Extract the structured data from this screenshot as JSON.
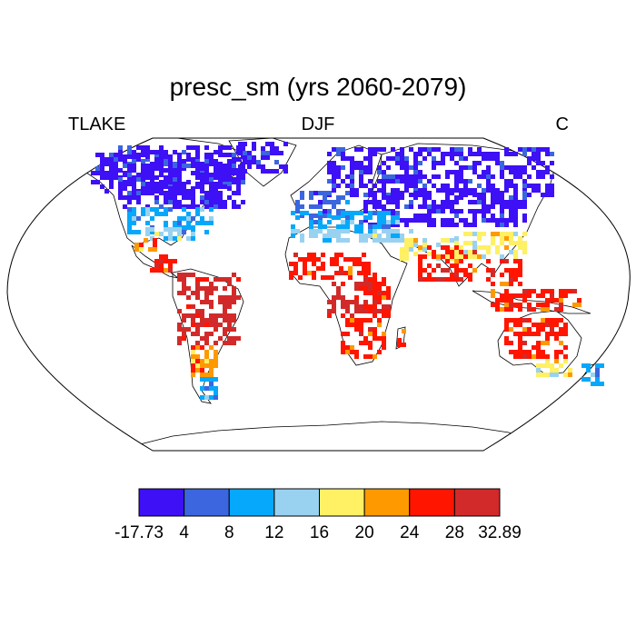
{
  "title": "presc_sm (yrs 2060-2079)",
  "left_label": "TLAKE",
  "center_label": "DJF",
  "right_label": "C",
  "colorbar": {
    "colors": [
      "#3d10f5",
      "#3b66e0",
      "#05a8fa",
      "#99d2f0",
      "#fff064",
      "#ff9900",
      "#ff1500",
      "#d22a2a"
    ],
    "tick_labels": [
      "-17.73",
      "4",
      "8",
      "12",
      "16",
      "20",
      "24",
      "28",
      "32.89"
    ]
  },
  "regions": [
    {
      "name": "north-america-north",
      "level": 0
    },
    {
      "name": "greenland",
      "level": 0
    },
    {
      "name": "north-america-mid",
      "level": 2
    },
    {
      "name": "usa-south",
      "level": 3
    },
    {
      "name": "mexico",
      "level": 5
    },
    {
      "name": "central-america",
      "level": 6
    },
    {
      "name": "south-america-tropics",
      "level": 7
    },
    {
      "name": "south-america-south",
      "level": 5
    },
    {
      "name": "patagonia",
      "level": 2
    },
    {
      "name": "scandinavia-siberia",
      "level": 0
    },
    {
      "name": "europe-central",
      "level": 1
    },
    {
      "name": "mediterranean",
      "level": 2
    },
    {
      "name": "north-africa-coast",
      "level": 3
    },
    {
      "name": "sahel",
      "level": 6
    },
    {
      "name": "central-africa",
      "level": 7
    },
    {
      "name": "east-africa",
      "level": 6
    },
    {
      "name": "southern-africa",
      "level": 6
    },
    {
      "name": "madagascar",
      "level": 6
    },
    {
      "name": "middle-east",
      "level": 4
    },
    {
      "name": "india",
      "level": 6
    },
    {
      "name": "china-south",
      "level": 4
    },
    {
      "name": "southeast-asia",
      "level": 6
    },
    {
      "name": "indonesia",
      "level": 6
    },
    {
      "name": "australia-north",
      "level": 6
    },
    {
      "name": "australia-southeast",
      "level": 4
    },
    {
      "name": "new-zealand",
      "level": 2
    }
  ]
}
